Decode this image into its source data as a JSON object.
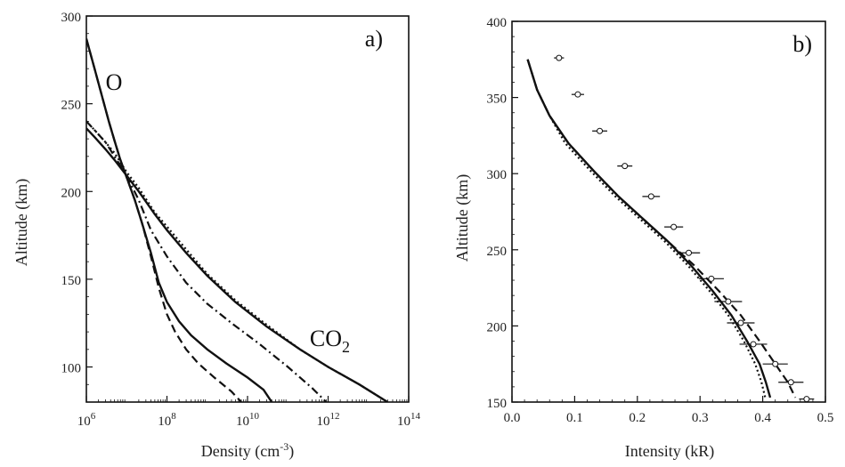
{
  "chart_data": [
    {
      "type": "line",
      "panel_label": "a)",
      "xlabel": "Density (cm-3)",
      "xlabel_base": "Density (cm",
      "xlabel_exp": "-3",
      "xlabel_close": ")",
      "ylabel": "Altitude (km)",
      "xscale": "log",
      "xlim": [
        1000000.0,
        100000000000000.0
      ],
      "ylim": [
        80,
        300
      ],
      "xticks": [
        {
          "label_base": "10",
          "label_exp": "6",
          "log": 6
        },
        {
          "label_base": "10",
          "label_exp": "8",
          "log": 8
        },
        {
          "label_base": "10",
          "label_exp": "10",
          "log": 10
        },
        {
          "label_base": "10",
          "label_exp": "12",
          "log": 12
        },
        {
          "label_base": "10",
          "label_exp": "14",
          "log": 14
        }
      ],
      "yticks": [
        "100",
        "150",
        "200",
        "250",
        "300"
      ],
      "annotations": [
        {
          "text": "O",
          "x": 3000000.0,
          "y": 258
        },
        {
          "text": "CO",
          "sub": "2",
          "x": 350000000000.0,
          "y": 112
        }
      ],
      "series": [
        {
          "style": "solid",
          "x": [
            1000000.0,
            1600000.0,
            2400000.0,
            3600000.0,
            5000000.0,
            7000000.0,
            10000000.0,
            16000000.0,
            24000000.0,
            40000000.0,
            63000000.0,
            100000000.0,
            200000000.0,
            400000000.0,
            1000000000.0,
            3000000000.0,
            10000000000.0,
            25000000000.0,
            40000000000.0
          ],
          "y": [
            287,
            270,
            255,
            240,
            229,
            218,
            208,
            195,
            182,
            165,
            148,
            137,
            126,
            118,
            110,
            102,
            94,
            87,
            80
          ]
        },
        {
          "style": "dashed",
          "x": [
            1000000.0,
            1600000.0,
            2400000.0,
            3600000.0,
            5000000.0,
            7000000.0,
            10000000.0,
            16000000.0,
            24000000.0,
            40000000.0,
            63000000.0,
            100000000.0,
            160000000.0,
            300000000.0,
            600000000.0,
            1500000000.0,
            4000000000.0,
            7000000000.0
          ],
          "y": [
            287,
            270,
            255,
            240,
            229,
            218,
            208,
            195,
            182,
            163,
            145,
            130,
            120,
            110,
            102,
            94,
            86,
            80
          ]
        },
        {
          "style": "dashdot",
          "x": [
            1000000.0,
            1600000.0,
            3000000.0,
            5000000.0,
            10000000.0,
            20000000.0,
            40000000.0,
            100000000.0,
            300000000.0,
            1000000000.0,
            4000000000.0,
            20000000000.0,
            100000000000.0,
            400000000000.0,
            900000000000.0
          ],
          "y": [
            240,
            235,
            228,
            220,
            209,
            195,
            178,
            163,
            148,
            136,
            125,
            113,
            100,
            88,
            80
          ]
        },
        {
          "style": "dotted",
          "x": [
            1000000.0,
            1600000.0,
            3000000.0,
            5000000.0,
            10000000.0,
            20000000.0,
            50000000.0,
            100000000.0,
            300000000.0,
            1000000000.0,
            5000000000.0,
            30000000000.0,
            200000000000.0,
            1000000000000.0,
            6000000000000.0,
            30000000000000.0
          ],
          "y": [
            240,
            235,
            228,
            222,
            211,
            202,
            188,
            180,
            167,
            153,
            138,
            124,
            110,
            100,
            90,
            80
          ]
        },
        {
          "style": "solid",
          "x": [
            1000000.0,
            1600000.0,
            3000000.0,
            5000000.0,
            10000000.0,
            20000000.0,
            50000000.0,
            100000000.0,
            300000000.0,
            1000000000.0,
            5000000000.0,
            30000000000.0,
            200000000000.0,
            1000000000000.0,
            6000000000000.0,
            30000000000000.0
          ],
          "y": [
            236,
            231,
            224,
            218,
            209,
            200,
            187,
            178,
            165,
            152,
            137,
            123,
            110,
            100,
            90,
            80
          ]
        }
      ]
    },
    {
      "type": "line",
      "panel_label": "b)",
      "xlabel": "Intensity (kR)",
      "ylabel": "Altitude (km)",
      "xlim": [
        0,
        0.5
      ],
      "ylim": [
        150,
        400
      ],
      "xticks": [
        "0.0",
        "0.1",
        "0.2",
        "0.3",
        "0.4",
        "0.5"
      ],
      "yticks": [
        "150",
        "200",
        "250",
        "300",
        "350",
        "400"
      ],
      "series": [
        {
          "style": "solid",
          "x": [
            0.025,
            0.04,
            0.06,
            0.09,
            0.13,
            0.17,
            0.21,
            0.25,
            0.285,
            0.32,
            0.35,
            0.375,
            0.395,
            0.405,
            0.412
          ],
          "y": [
            375,
            355,
            338,
            320,
            302,
            285,
            270,
            255,
            240,
            223,
            207,
            190,
            175,
            163,
            153
          ]
        },
        {
          "style": "dashed",
          "x": [
            0.025,
            0.04,
            0.06,
            0.09,
            0.13,
            0.17,
            0.21,
            0.25,
            0.29,
            0.33,
            0.365,
            0.395,
            0.42,
            0.44,
            0.452
          ],
          "y": [
            375,
            355,
            338,
            320,
            302,
            285,
            270,
            255,
            240,
            223,
            207,
            190,
            175,
            163,
            153
          ]
        },
        {
          "style": "dotted",
          "x": [
            0.025,
            0.04,
            0.06,
            0.085,
            0.125,
            0.165,
            0.205,
            0.245,
            0.28,
            0.315,
            0.345,
            0.37,
            0.388,
            0.398,
            0.404
          ],
          "y": [
            375,
            355,
            338,
            320,
            302,
            285,
            270,
            255,
            240,
            223,
            207,
            190,
            175,
            163,
            153
          ]
        }
      ],
      "observations": [
        {
          "x": 0.075,
          "y": 376,
          "xerr": 0.008
        },
        {
          "x": 0.105,
          "y": 352,
          "xerr": 0.01
        },
        {
          "x": 0.14,
          "y": 328,
          "xerr": 0.012
        },
        {
          "x": 0.18,
          "y": 305,
          "xerr": 0.012
        },
        {
          "x": 0.222,
          "y": 285,
          "xerr": 0.014
        },
        {
          "x": 0.258,
          "y": 265,
          "xerr": 0.015
        },
        {
          "x": 0.282,
          "y": 248,
          "xerr": 0.018
        },
        {
          "x": 0.318,
          "y": 231,
          "xerr": 0.02
        },
        {
          "x": 0.345,
          "y": 216,
          "xerr": 0.022
        },
        {
          "x": 0.365,
          "y": 202,
          "xerr": 0.022
        },
        {
          "x": 0.385,
          "y": 188,
          "xerr": 0.022
        },
        {
          "x": 0.42,
          "y": 175,
          "xerr": 0.02
        },
        {
          "x": 0.445,
          "y": 163,
          "xerr": 0.02
        },
        {
          "x": 0.47,
          "y": 152,
          "xerr": 0.012
        }
      ]
    }
  ]
}
